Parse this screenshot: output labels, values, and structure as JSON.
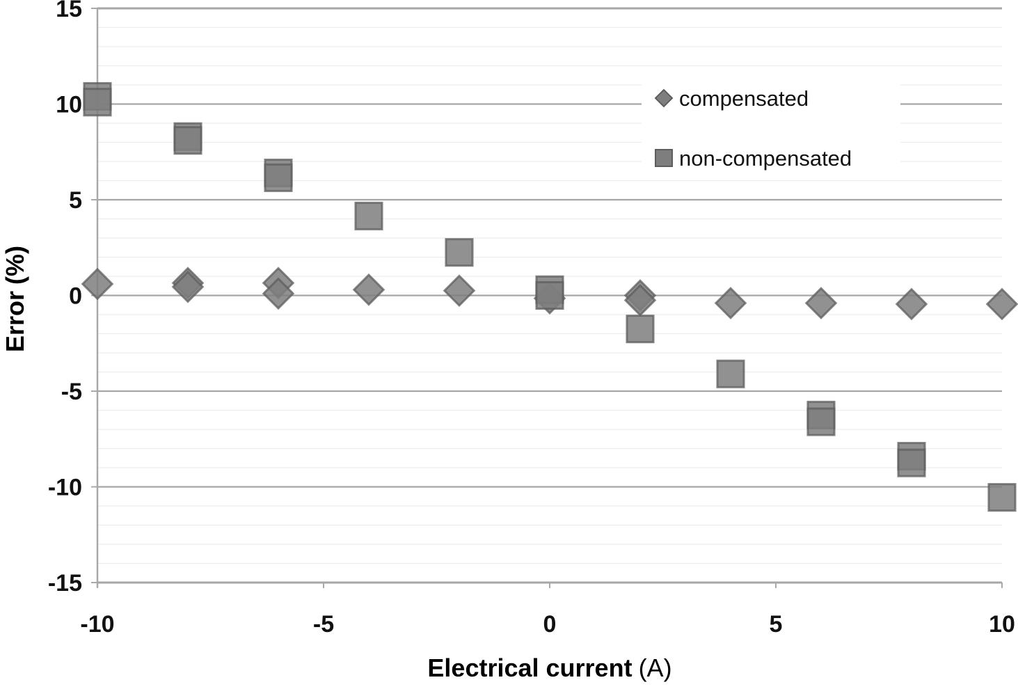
{
  "chart_data": {
    "type": "scatter",
    "title": "",
    "xlabel": {
      "main": "Electrical current",
      "unit": "(A)"
    },
    "ylabel": {
      "main": "Error",
      "unit": "(%)"
    },
    "xlim": [
      -10,
      10
    ],
    "ylim": [
      -15,
      15
    ],
    "x_major_ticks": [
      -10,
      -5,
      0,
      5,
      10
    ],
    "y_major_ticks": [
      15,
      10,
      5,
      0,
      -5,
      -10,
      -15
    ],
    "y_minor_step": 1,
    "gridlines": {
      "major_horizontal": true,
      "minor_horizontal": true,
      "vertical": false
    },
    "legend_position": "inside-top-right",
    "series": [
      {
        "name": "compensated",
        "marker": "diamond",
        "points": [
          [
            -10,
            0.6
          ],
          [
            -8,
            0.65
          ],
          [
            -8,
            0.45
          ],
          [
            -6,
            0.65
          ],
          [
            -6,
            0.1
          ],
          [
            -4,
            0.3
          ],
          [
            -2,
            0.25
          ],
          [
            0,
            -0.15
          ],
          [
            2,
            0.0
          ],
          [
            2,
            -0.25
          ],
          [
            4,
            -0.4
          ],
          [
            6,
            -0.4
          ],
          [
            8,
            -0.45
          ],
          [
            10,
            -0.45
          ]
        ]
      },
      {
        "name": "non-compensated",
        "marker": "square",
        "points": [
          [
            -10,
            10.4
          ],
          [
            -10,
            10.1
          ],
          [
            -8,
            8.3
          ],
          [
            -8,
            8.1
          ],
          [
            -6,
            6.4
          ],
          [
            -6,
            6.15
          ],
          [
            -4,
            4.15
          ],
          [
            -2,
            2.25
          ],
          [
            0,
            0.3
          ],
          [
            0,
            0.0
          ],
          [
            2,
            -1.75
          ],
          [
            4,
            -4.1
          ],
          [
            6,
            -6.25
          ],
          [
            6,
            -6.6
          ],
          [
            8,
            -8.4
          ],
          [
            8,
            -8.75
          ],
          [
            10,
            -10.55
          ]
        ]
      }
    ]
  },
  "colors": {
    "marker_fill": "#7e7e7e",
    "marker_stroke": "#5d5d5d",
    "major_gridline": "#a6a6a6",
    "minor_gridline": "#ededed",
    "axis_line": "#a9a9a9",
    "tick_text": "#111111",
    "title_text": "#000000",
    "legend_text": "#111111",
    "legend_bg": "#ffffff"
  }
}
